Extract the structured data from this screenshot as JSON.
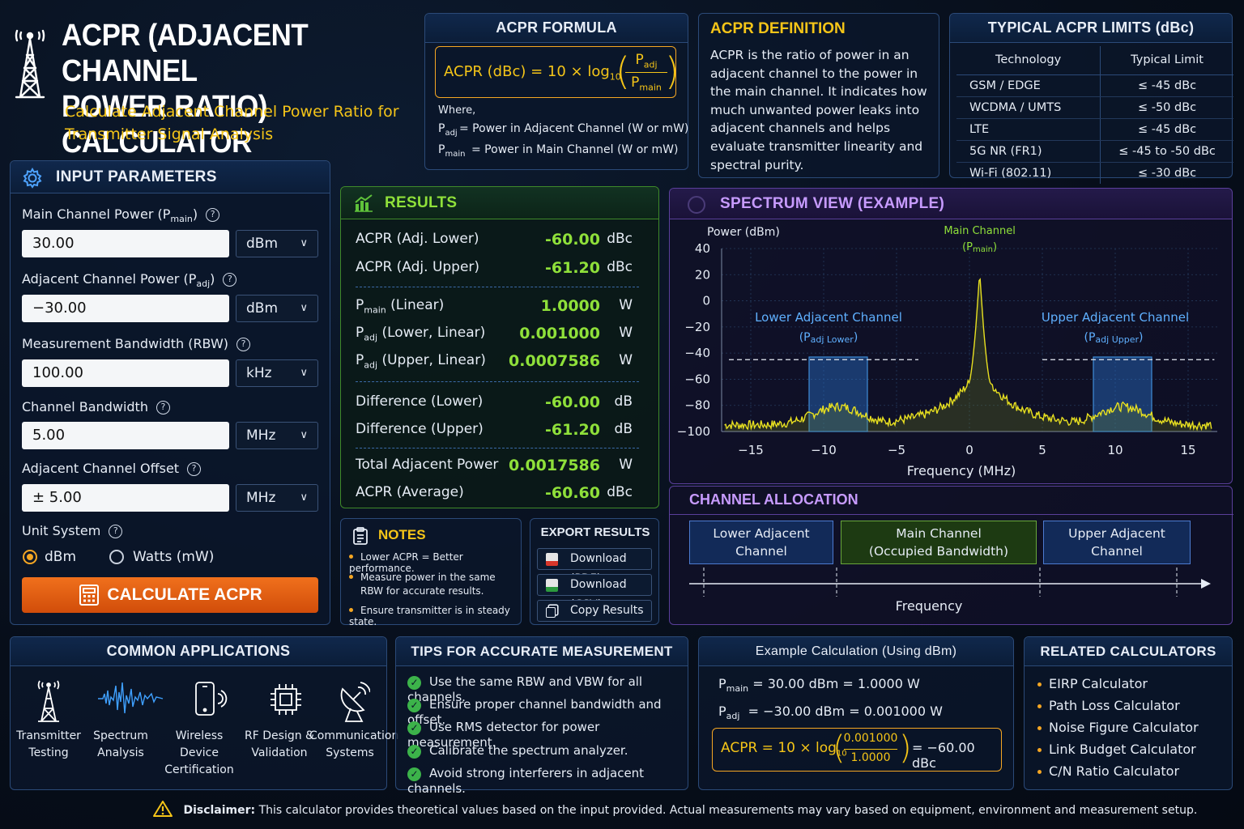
{
  "header": {
    "title_line1": "ACPR (ADJACENT CHANNEL",
    "title_line2": "POWER RATIO) CALCULATOR",
    "subtitle_line1": "Calculate Adjacent Channel Power Ratio for",
    "subtitle_line2": "Transmitter Signal Analysis"
  },
  "formula": {
    "title": "ACPR FORMULA",
    "lhs": "ACPR (dBc) = 10 × log",
    "sub10": "10",
    "num": "P",
    "num_sub": "adj",
    "den": "P",
    "den_sub": "main",
    "where": "Where,",
    "padj_sym": "P",
    "padj_sub": "adj",
    "padj_desc": "=  Power in Adjacent Channel (W or mW)",
    "pmain_sym": "P",
    "pmain_sub": "main",
    "pmain_desc": "=  Power in Main Channel (W or mW)"
  },
  "definition": {
    "title": "ACPR DEFINITION",
    "text": "ACPR is the ratio of power in an adjacent channel to the power in the main channel. It indicates how much unwanted power leaks into adjacent channels and helps evaluate transmitter linearity and spectral purity."
  },
  "limits": {
    "title": "TYPICAL ACPR LIMITS (dBc)",
    "col1": "Technology",
    "col2": "Typical Limit",
    "rows": [
      {
        "tech": "GSM / EDGE",
        "limit": "≤ -45 dBc"
      },
      {
        "tech": "WCDMA / UMTS",
        "limit": "≤ -50 dBc"
      },
      {
        "tech": "LTE",
        "limit": "≤ -45 dBc"
      },
      {
        "tech": "5G NR (FR1)",
        "limit": "≤ -45 to -50 dBc"
      },
      {
        "tech": "Wi-Fi (802.11)",
        "limit": "≤ -30 dBc"
      }
    ]
  },
  "inputs": {
    "title": "INPUT PARAMETERS",
    "main_label": "Main Channel Power (P",
    "main_label_sub": "main",
    "main_value": "30.00",
    "main_unit": "dBm",
    "adj_label": "Adjacent Channel Power (P",
    "adj_label_sub": "adj",
    "adj_value": "−30.00",
    "adj_unit": "dBm",
    "rbw_label": "Measurement Bandwidth (RBW)",
    "rbw_value": "100.00",
    "rbw_unit": "kHz",
    "cbw_label": "Channel Bandwidth",
    "cbw_value": "5.00",
    "cbw_unit": "MHz",
    "offset_label": "Adjacent Channel Offset",
    "offset_value": "±  5.00",
    "offset_unit": "MHz",
    "unit_system_label": "Unit System",
    "opt_dbm": "dBm",
    "opt_watts": "Watts (mW)",
    "calculate": "CALCULATE ACPR"
  },
  "results": {
    "title": "RESULTS",
    "rows": [
      {
        "label": "ACPR (Adj. Lower)",
        "value": "-60.00",
        "unit": "dBc"
      },
      {
        "label": "ACPR (Adj. Upper)",
        "value": "-61.20",
        "unit": "dBc"
      },
      {
        "label": "(Linear)",
        "sym_sub": "main",
        "value": "1.0000",
        "unit": "W"
      },
      {
        "label": "(Lower, Linear)",
        "sym_sub": "adj",
        "value": "0.001000",
        "unit": "W"
      },
      {
        "label": "(Upper, Linear)",
        "sym_sub": "adj",
        "value": "0.0007586",
        "unit": "W"
      },
      {
        "label": "Difference (Lower)",
        "value": "-60.00",
        "unit": "dB"
      },
      {
        "label": "Difference (Upper)",
        "value": "-61.20",
        "unit": "dB"
      },
      {
        "label": "Total Adjacent Power",
        "value": "0.0017586",
        "unit": "W"
      },
      {
        "label": "ACPR (Average)",
        "value": "-60.60",
        "unit": "dBc"
      }
    ]
  },
  "notes": {
    "title": "NOTES",
    "items": [
      "Lower ACPR = Better performance.",
      "Measure power in the same RBW for accurate results.",
      "Ensure transmitter is in steady state."
    ]
  },
  "export": {
    "title": "EXPORT RESULTS",
    "pdf": "Download (PDF)",
    "csv": "Download (CSV)",
    "copy": "Copy Results"
  },
  "spectrum": {
    "title": "SPECTRUM VIEW (EXAMPLE)",
    "ylabel": "Power (dBm)",
    "xlabel": "Frequency (MHz)",
    "main_label": "Main Channel",
    "main_label_sub": "(P",
    "main_label_subsub": "main",
    "lower_label": "Lower Adjacent Channel",
    "lower_sub": "(P",
    "lower_subsub": "adj Lower",
    "upper_label": "Upper Adjacent Channel",
    "upper_sub": "(P",
    "upper_subsub": "adj Upper",
    "chart_data": {
      "type": "line",
      "xlim": [
        -17,
        17
      ],
      "ylim": [
        -100,
        40
      ],
      "x_ticks": [
        -15,
        -10,
        -5,
        0,
        5,
        10,
        15
      ],
      "y_ticks": [
        40,
        20,
        0,
        -20,
        -40,
        -60,
        -80,
        -100
      ],
      "peak_x": 0.7,
      "peak_y": 22,
      "adjacent_center_lower": -9,
      "adjacent_center_upper": 10.5,
      "adjacent_level": -80,
      "limit_line_level": -45,
      "floor_level": -95,
      "grid": true
    }
  },
  "allocation": {
    "title": "CHANNEL ALLOCATION",
    "lower": "Lower Adjacent Channel",
    "main_line1": "Main Channel",
    "main_line2": "(Occupied Bandwidth)",
    "upper": "Upper Adjacent Channel",
    "axis": "Frequency"
  },
  "applications": {
    "title": "COMMON APPLICATIONS",
    "items": [
      {
        "icon": "tower-icon",
        "line1": "Transmitter",
        "line2": "Testing"
      },
      {
        "icon": "waveform-icon",
        "line1": "Spectrum",
        "line2": "Analysis"
      },
      {
        "icon": "phone-icon",
        "line1": "Wireless Device",
        "line2": "Certification"
      },
      {
        "icon": "chip-icon",
        "line1": "RF Design &",
        "line2": "Validation"
      },
      {
        "icon": "satellite-dish-icon",
        "line1": "Communication",
        "line2": "Systems"
      }
    ]
  },
  "tips": {
    "title": "TIPS FOR ACCURATE MEASUREMENT",
    "items": [
      "Use the same RBW and VBW for all channels.",
      "Ensure proper channel bandwidth and offset.",
      "Use RMS detector for power measurement.",
      "Calibrate the spectrum analyzer.",
      "Avoid strong interferers in adjacent channels."
    ]
  },
  "example": {
    "title": "Example Calculation (Using dBm)",
    "pmain_sub": "main",
    "pmain_text": "=  30.00 dBm = 1.0000 W",
    "padj_sub": "adj",
    "padj_text": "=  −30.00 dBm = 0.001000 W",
    "acpr_lhs": "ACPR = 10 × log",
    "acpr_sub": "10",
    "num": "0.001000",
    "den": "1.0000",
    "result": "= −60.00 dBc"
  },
  "related": {
    "title": "RELATED CALCULATORS",
    "items": [
      "EIRP Calculator",
      "Path Loss Calculator",
      "Noise Figure Calculator",
      "Link Budget Calculator",
      "C/N Ratio Calculator"
    ]
  },
  "footer": {
    "label": "Disclaimer:",
    "text": "This calculator provides theoretical values based on the input provided. Actual measurements may vary based on equipment, environment and measurement setup."
  },
  "colors": {
    "accent_yellow": "#f5c518",
    "result_green": "#8fe03a",
    "button_orange": "#e85f12",
    "trace_yellow": "#e8e020"
  }
}
